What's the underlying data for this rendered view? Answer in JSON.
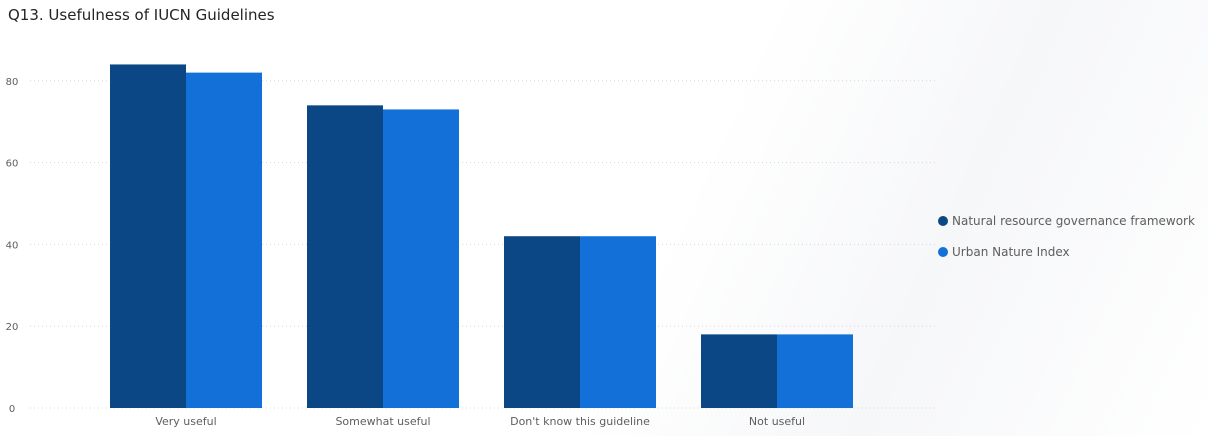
{
  "chart_data": {
    "type": "bar",
    "title": "Q13. Usefulness of IUCN Guidelines",
    "categories": [
      "Very useful",
      "Somewhat useful",
      "Don't know this guideline",
      "Not useful"
    ],
    "series": [
      {
        "name": "Natural resource governance framework",
        "values": [
          84,
          74,
          42,
          18
        ],
        "color": "#0c4785"
      },
      {
        "name": "Urban Nature Index",
        "values": [
          82,
          73,
          42,
          18
        ],
        "color": "#1270d8"
      }
    ],
    "yticks": [
      0,
      20,
      40,
      60,
      80
    ],
    "ylim": [
      0,
      88
    ],
    "grid": true,
    "legend_position": "right"
  }
}
